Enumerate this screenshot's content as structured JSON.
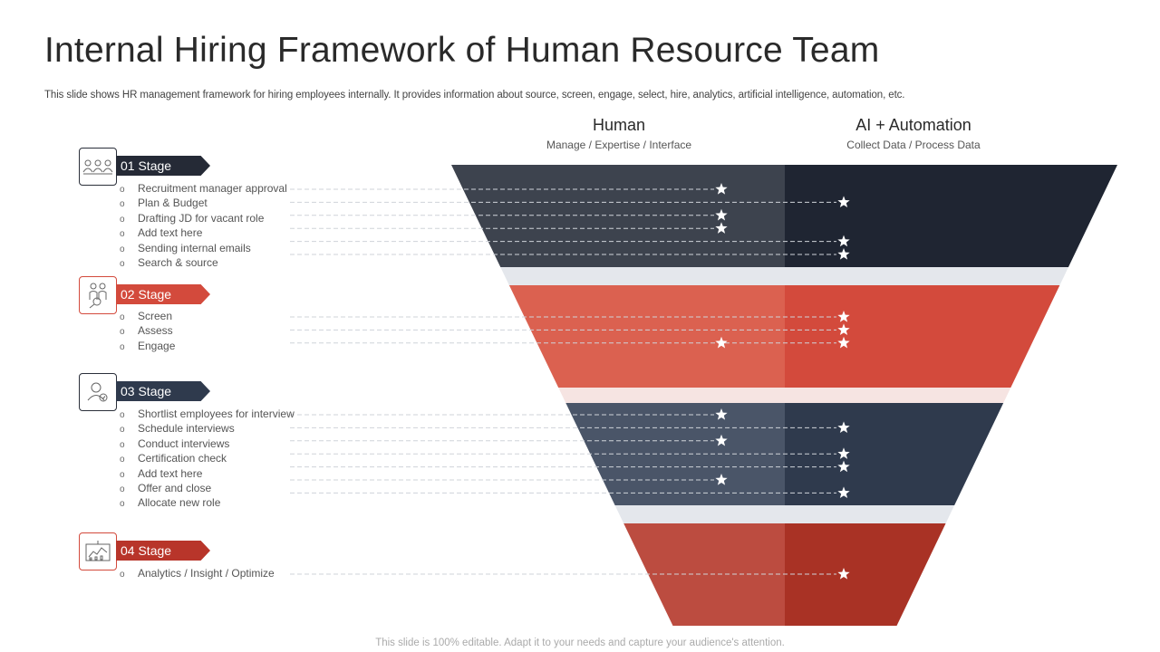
{
  "title": "Internal Hiring Framework of Human Resource Team",
  "subtitle": "This slide shows HR management framework for hiring employees internally. It provides information about source, screen, engage, select, hire, analytics, artificial intelligence, automation, etc.",
  "columns": {
    "human": {
      "heading": "Human",
      "sub": "Manage / Expertise / Interface"
    },
    "ai": {
      "heading": "AI + Automation",
      "sub": "Collect Data / Process Data"
    }
  },
  "stages": [
    {
      "label": "01 Stage",
      "icon": "team-icon",
      "color": "#252a36",
      "items": [
        {
          "text": "Recruitment manager approval",
          "star": "human"
        },
        {
          "text": "Plan & Budget",
          "star": "ai"
        },
        {
          "text": "Drafting JD for vacant role",
          "star": "human"
        },
        {
          "text": "Add text here",
          "star": "human"
        },
        {
          "text": "Sending internal emails",
          "star": "ai"
        },
        {
          "text": "Search & source",
          "star": "ai"
        }
      ]
    },
    {
      "label": "02 Stage",
      "icon": "group-search-icon",
      "color": "#d34a3c",
      "items": [
        {
          "text": "Screen",
          "star": "ai"
        },
        {
          "text": "Assess",
          "star": "ai"
        },
        {
          "text": "Engage",
          "star": "both"
        }
      ]
    },
    {
      "label": "03 Stage",
      "icon": "user-check-icon",
      "color": "#2f3a4d",
      "items": [
        {
          "text": "Shortlist employees for interview",
          "star": "human"
        },
        {
          "text": "Schedule interviews",
          "star": "ai"
        },
        {
          "text": "Conduct interviews",
          "star": "human"
        },
        {
          "text": "Certification check",
          "star": "ai"
        },
        {
          "text": "Add text here",
          "star": "ai"
        },
        {
          "text": "Offer and close",
          "star": "human"
        },
        {
          "text": "Allocate new role",
          "star": "ai"
        }
      ]
    },
    {
      "label": "04 Stage",
      "icon": "analytics-board-icon",
      "color": "#b8352a",
      "items": [
        {
          "text": "Analytics / Insight / Optimize",
          "star": "ai"
        }
      ]
    }
  ],
  "bullet": "o",
  "footer": "This slide is 100% editable. Adapt it to your needs and capture your audience's attention."
}
